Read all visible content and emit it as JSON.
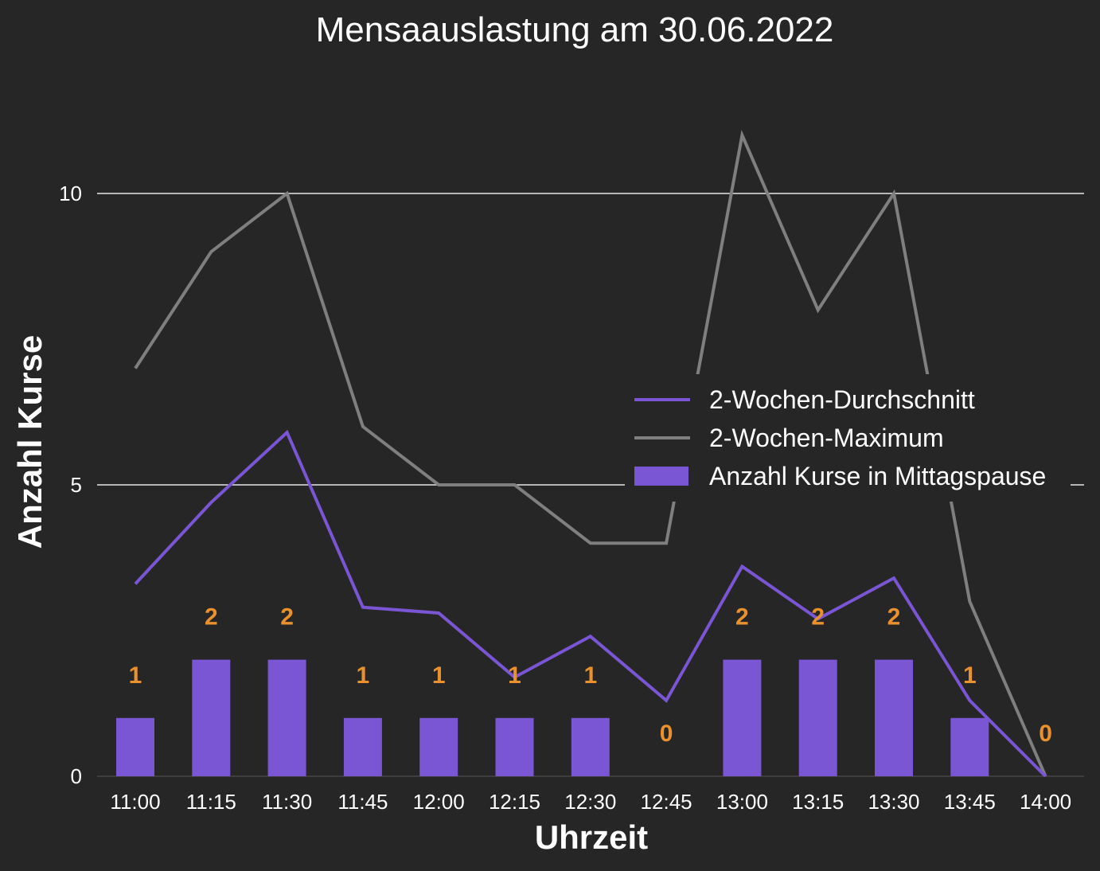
{
  "chart_data": {
    "type": "bar",
    "title": "Mensaauslastung am 30.06.2022",
    "xlabel": "Uhrzeit",
    "ylabel": "Anzahl Kurse",
    "categories": [
      "11:00",
      "11:15",
      "11:30",
      "11:45",
      "12:00",
      "12:15",
      "12:30",
      "12:45",
      "13:00",
      "13:15",
      "13:30",
      "13:45",
      "14:00"
    ],
    "ylim": [
      0,
      11.8
    ],
    "yticks": [
      "0",
      "5",
      "10"
    ],
    "grid": true,
    "legend_position": "center-right",
    "series": [
      {
        "name": "Anzahl Kurse in Mittagspause",
        "type": "bar",
        "color": "#7a55d4",
        "values": [
          1,
          2,
          2,
          1,
          1,
          1,
          1,
          0,
          2,
          2,
          2,
          1,
          0
        ],
        "data_labels": [
          "1",
          "2",
          "2",
          "1",
          "1",
          "1",
          "1",
          "0",
          "2",
          "2",
          "2",
          "1",
          "0"
        ]
      },
      {
        "name": "2-Wochen-Durchschnitt",
        "type": "line",
        "color": "#7a55d4",
        "values": [
          3.3,
          4.7,
          5.9,
          2.9,
          2.8,
          1.7,
          2.4,
          1.3,
          3.6,
          2.7,
          3.4,
          1.3,
          0
        ]
      },
      {
        "name": "2-Wochen-Maximum",
        "type": "line",
        "color": "#7f7f7f",
        "values": [
          7,
          9,
          10,
          6,
          5,
          5,
          4,
          4,
          11,
          8,
          10,
          3,
          0
        ]
      }
    ],
    "data_label_color": "#e8912d",
    "grid_color": "#e6e6e6"
  }
}
